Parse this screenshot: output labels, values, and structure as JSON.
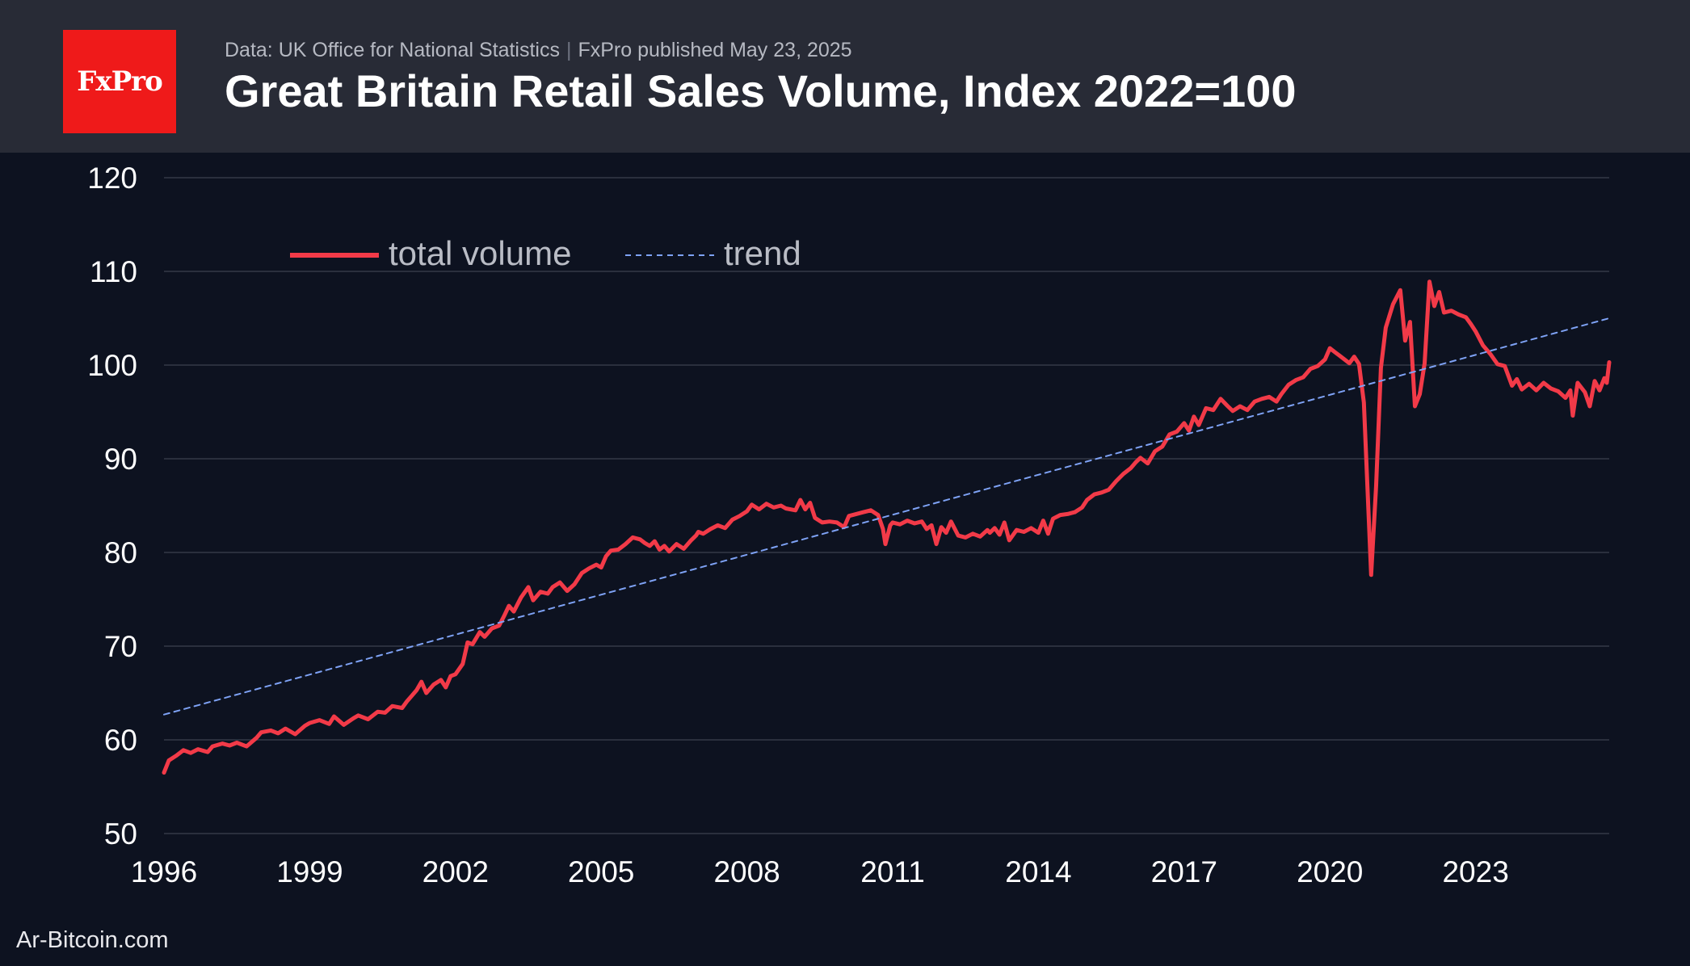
{
  "header": {
    "logo_text": "FxPro",
    "source": "Data: UK Office for National Statistics",
    "separator": "|",
    "publisher": "FxPro published May 23, 2025",
    "title": "Great Britain Retail Sales Volume, Index 2022=100"
  },
  "footer": {
    "watermark": "Ar-Bitcoin.com"
  },
  "colors": {
    "background": "#0d1220",
    "header_bg": "#282b36",
    "logo_bg": "#ef1a1a",
    "series": "#f23a48",
    "trend": "#7ea2f5",
    "grid": "#2a2f3d",
    "tick_text": "#ffffff",
    "legend_text": "#b9bcc5"
  },
  "chart_data": {
    "type": "line",
    "title": "Great Britain Retail Sales Volume, Index 2022=100",
    "xlabel": "",
    "ylabel": "",
    "xlim": [
      1996,
      2025.75
    ],
    "ylim": [
      50,
      120
    ],
    "grid": true,
    "legend_position": "top-left",
    "yticks": [
      50,
      60,
      70,
      80,
      90,
      100,
      110,
      120
    ],
    "xticks": [
      1996,
      1999,
      2002,
      2005,
      2008,
      2011,
      2014,
      2017,
      2020,
      2023
    ],
    "series": [
      {
        "name": "total volume",
        "style": "solid",
        "points": [
          [
            1996.0,
            56.5
          ],
          [
            1996.1,
            57.8
          ],
          [
            1996.25,
            58.3
          ],
          [
            1996.4,
            58.9
          ],
          [
            1996.55,
            58.6
          ],
          [
            1996.7,
            59.0
          ],
          [
            1996.9,
            58.7
          ],
          [
            1997.0,
            59.3
          ],
          [
            1997.2,
            59.6
          ],
          [
            1997.35,
            59.4
          ],
          [
            1997.5,
            59.7
          ],
          [
            1997.7,
            59.3
          ],
          [
            1997.9,
            60.2
          ],
          [
            1998.0,
            60.8
          ],
          [
            1998.2,
            61.0
          ],
          [
            1998.35,
            60.7
          ],
          [
            1998.5,
            61.2
          ],
          [
            1998.7,
            60.6
          ],
          [
            1998.9,
            61.5
          ],
          [
            1999.0,
            61.8
          ],
          [
            1999.2,
            62.1
          ],
          [
            1999.4,
            61.7
          ],
          [
            1999.5,
            62.5
          ],
          [
            1999.7,
            61.6
          ],
          [
            1999.9,
            62.3
          ],
          [
            2000.0,
            62.6
          ],
          [
            2000.2,
            62.2
          ],
          [
            2000.4,
            63.0
          ],
          [
            2000.55,
            62.9
          ],
          [
            2000.7,
            63.6
          ],
          [
            2000.9,
            63.4
          ],
          [
            2001.0,
            64.1
          ],
          [
            2001.1,
            64.7
          ],
          [
            2001.2,
            65.3
          ],
          [
            2001.3,
            66.2
          ],
          [
            2001.4,
            65.0
          ],
          [
            2001.55,
            65.9
          ],
          [
            2001.7,
            66.4
          ],
          [
            2001.8,
            65.6
          ],
          [
            2001.9,
            66.8
          ],
          [
            2002.0,
            67.0
          ],
          [
            2002.15,
            68.1
          ],
          [
            2002.25,
            70.4
          ],
          [
            2002.35,
            70.2
          ],
          [
            2002.5,
            71.5
          ],
          [
            2002.6,
            71.0
          ],
          [
            2002.75,
            71.9
          ],
          [
            2002.9,
            72.2
          ],
          [
            2003.0,
            73.2
          ],
          [
            2003.1,
            74.3
          ],
          [
            2003.2,
            73.7
          ],
          [
            2003.35,
            75.2
          ],
          [
            2003.5,
            76.3
          ],
          [
            2003.6,
            74.9
          ],
          [
            2003.75,
            75.8
          ],
          [
            2003.9,
            75.6
          ],
          [
            2004.0,
            76.3
          ],
          [
            2004.15,
            76.8
          ],
          [
            2004.3,
            75.9
          ],
          [
            2004.45,
            76.6
          ],
          [
            2004.6,
            77.8
          ],
          [
            2004.75,
            78.3
          ],
          [
            2004.9,
            78.7
          ],
          [
            2005.0,
            78.4
          ],
          [
            2005.1,
            79.6
          ],
          [
            2005.2,
            80.2
          ],
          [
            2005.35,
            80.3
          ],
          [
            2005.5,
            80.9
          ],
          [
            2005.65,
            81.6
          ],
          [
            2005.8,
            81.4
          ],
          [
            2005.9,
            81.0
          ],
          [
            2006.0,
            80.7
          ],
          [
            2006.1,
            81.2
          ],
          [
            2006.2,
            80.3
          ],
          [
            2006.3,
            80.7
          ],
          [
            2006.4,
            80.1
          ],
          [
            2006.55,
            80.9
          ],
          [
            2006.7,
            80.4
          ],
          [
            2006.85,
            81.3
          ],
          [
            2006.95,
            81.8
          ],
          [
            2007.0,
            82.2
          ],
          [
            2007.1,
            82.0
          ],
          [
            2007.25,
            82.5
          ],
          [
            2007.4,
            82.9
          ],
          [
            2007.55,
            82.6
          ],
          [
            2007.7,
            83.5
          ],
          [
            2007.85,
            83.9
          ],
          [
            2008.0,
            84.4
          ],
          [
            2008.1,
            85.1
          ],
          [
            2008.25,
            84.6
          ],
          [
            2008.4,
            85.2
          ],
          [
            2008.55,
            84.8
          ],
          [
            2008.7,
            85.0
          ],
          [
            2008.8,
            84.7
          ],
          [
            2009.0,
            84.5
          ],
          [
            2009.1,
            85.6
          ],
          [
            2009.2,
            84.6
          ],
          [
            2009.3,
            85.3
          ],
          [
            2009.4,
            83.7
          ],
          [
            2009.55,
            83.2
          ],
          [
            2009.7,
            83.3
          ],
          [
            2009.85,
            83.2
          ],
          [
            2010.0,
            82.7
          ],
          [
            2010.1,
            83.9
          ],
          [
            2010.25,
            84.1
          ],
          [
            2010.4,
            84.3
          ],
          [
            2010.55,
            84.5
          ],
          [
            2010.7,
            84.0
          ],
          [
            2010.8,
            82.5
          ],
          [
            2010.85,
            80.9
          ],
          [
            2010.95,
            82.9
          ],
          [
            2011.0,
            83.2
          ],
          [
            2011.15,
            83.0
          ],
          [
            2011.3,
            83.4
          ],
          [
            2011.45,
            83.1
          ],
          [
            2011.6,
            83.3
          ],
          [
            2011.7,
            82.5
          ],
          [
            2011.8,
            82.9
          ],
          [
            2011.9,
            80.9
          ],
          [
            2012.0,
            82.7
          ],
          [
            2012.1,
            82.1
          ],
          [
            2012.2,
            83.3
          ],
          [
            2012.35,
            81.8
          ],
          [
            2012.5,
            81.6
          ],
          [
            2012.65,
            82.0
          ],
          [
            2012.8,
            81.7
          ],
          [
            2012.95,
            82.4
          ],
          [
            2013.0,
            82.1
          ],
          [
            2013.1,
            82.6
          ],
          [
            2013.2,
            81.9
          ],
          [
            2013.3,
            83.2
          ],
          [
            2013.4,
            81.3
          ],
          [
            2013.55,
            82.4
          ],
          [
            2013.7,
            82.2
          ],
          [
            2013.85,
            82.6
          ],
          [
            2014.0,
            82.1
          ],
          [
            2014.1,
            83.4
          ],
          [
            2014.2,
            82.0
          ],
          [
            2014.3,
            83.6
          ],
          [
            2014.45,
            84.0
          ],
          [
            2014.6,
            84.1
          ],
          [
            2014.75,
            84.3
          ],
          [
            2014.9,
            84.8
          ],
          [
            2015.0,
            85.6
          ],
          [
            2015.15,
            86.2
          ],
          [
            2015.3,
            86.4
          ],
          [
            2015.45,
            86.7
          ],
          [
            2015.6,
            87.6
          ],
          [
            2015.75,
            88.4
          ],
          [
            2015.9,
            89.0
          ],
          [
            2016.0,
            89.6
          ],
          [
            2016.1,
            90.1
          ],
          [
            2016.25,
            89.5
          ],
          [
            2016.4,
            90.8
          ],
          [
            2016.55,
            91.3
          ],
          [
            2016.7,
            92.6
          ],
          [
            2016.85,
            92.9
          ],
          [
            2017.0,
            93.8
          ],
          [
            2017.1,
            93.0
          ],
          [
            2017.2,
            94.5
          ],
          [
            2017.3,
            93.6
          ],
          [
            2017.45,
            95.4
          ],
          [
            2017.6,
            95.2
          ],
          [
            2017.75,
            96.4
          ],
          [
            2017.9,
            95.6
          ],
          [
            2018.0,
            95.1
          ],
          [
            2018.15,
            95.6
          ],
          [
            2018.3,
            95.2
          ],
          [
            2018.45,
            96.1
          ],
          [
            2018.6,
            96.4
          ],
          [
            2018.75,
            96.6
          ],
          [
            2018.9,
            96.1
          ],
          [
            2019.0,
            96.9
          ],
          [
            2019.15,
            97.9
          ],
          [
            2019.3,
            98.4
          ],
          [
            2019.45,
            98.7
          ],
          [
            2019.6,
            99.6
          ],
          [
            2019.75,
            99.9
          ],
          [
            2019.9,
            100.6
          ],
          [
            2020.0,
            101.8
          ],
          [
            2020.1,
            101.4
          ],
          [
            2020.2,
            101.0
          ],
          [
            2020.3,
            100.6
          ],
          [
            2020.4,
            100.2
          ],
          [
            2020.5,
            100.9
          ],
          [
            2020.6,
            100.1
          ],
          [
            2020.7,
            96.0
          ],
          [
            2020.85,
            77.6
          ],
          [
            2020.95,
            87.0
          ],
          [
            2021.05,
            99.7
          ],
          [
            2021.15,
            104.0
          ],
          [
            2021.3,
            106.5
          ],
          [
            2021.45,
            108.0
          ],
          [
            2021.55,
            102.6
          ],
          [
            2021.65,
            104.6
          ],
          [
            2021.75,
            95.6
          ],
          [
            2021.85,
            96.9
          ],
          [
            2021.95,
            100.2
          ],
          [
            2022.05,
            108.9
          ],
          [
            2022.15,
            106.3
          ],
          [
            2022.25,
            107.8
          ],
          [
            2022.35,
            105.6
          ],
          [
            2022.5,
            105.8
          ],
          [
            2022.65,
            105.4
          ],
          [
            2022.8,
            105.1
          ],
          [
            2022.9,
            104.4
          ],
          [
            2023.0,
            103.6
          ],
          [
            2023.15,
            102.1
          ],
          [
            2023.3,
            101.2
          ],
          [
            2023.45,
            100.1
          ],
          [
            2023.6,
            99.9
          ],
          [
            2023.75,
            97.8
          ],
          [
            2023.85,
            98.5
          ],
          [
            2023.95,
            97.4
          ],
          [
            2024.1,
            98.0
          ],
          [
            2024.25,
            97.3
          ],
          [
            2024.4,
            98.1
          ],
          [
            2024.55,
            97.5
          ],
          [
            2024.7,
            97.2
          ],
          [
            2024.85,
            96.5
          ],
          [
            2024.95,
            97.3
          ],
          [
            2025.0,
            94.6
          ],
          [
            2025.1,
            98.1
          ],
          [
            2025.25,
            97.1
          ],
          [
            2025.35,
            95.6
          ],
          [
            2025.45,
            98.3
          ],
          [
            2025.55,
            97.3
          ],
          [
            2025.65,
            98.6
          ],
          [
            2025.7,
            98.1
          ],
          [
            2025.72,
            99.0
          ],
          [
            2025.75,
            100.3
          ]
        ]
      },
      {
        "name": "trend",
        "style": "dashed",
        "points": [
          [
            1996.0,
            62.7
          ],
          [
            2025.75,
            105.0
          ]
        ]
      }
    ]
  }
}
